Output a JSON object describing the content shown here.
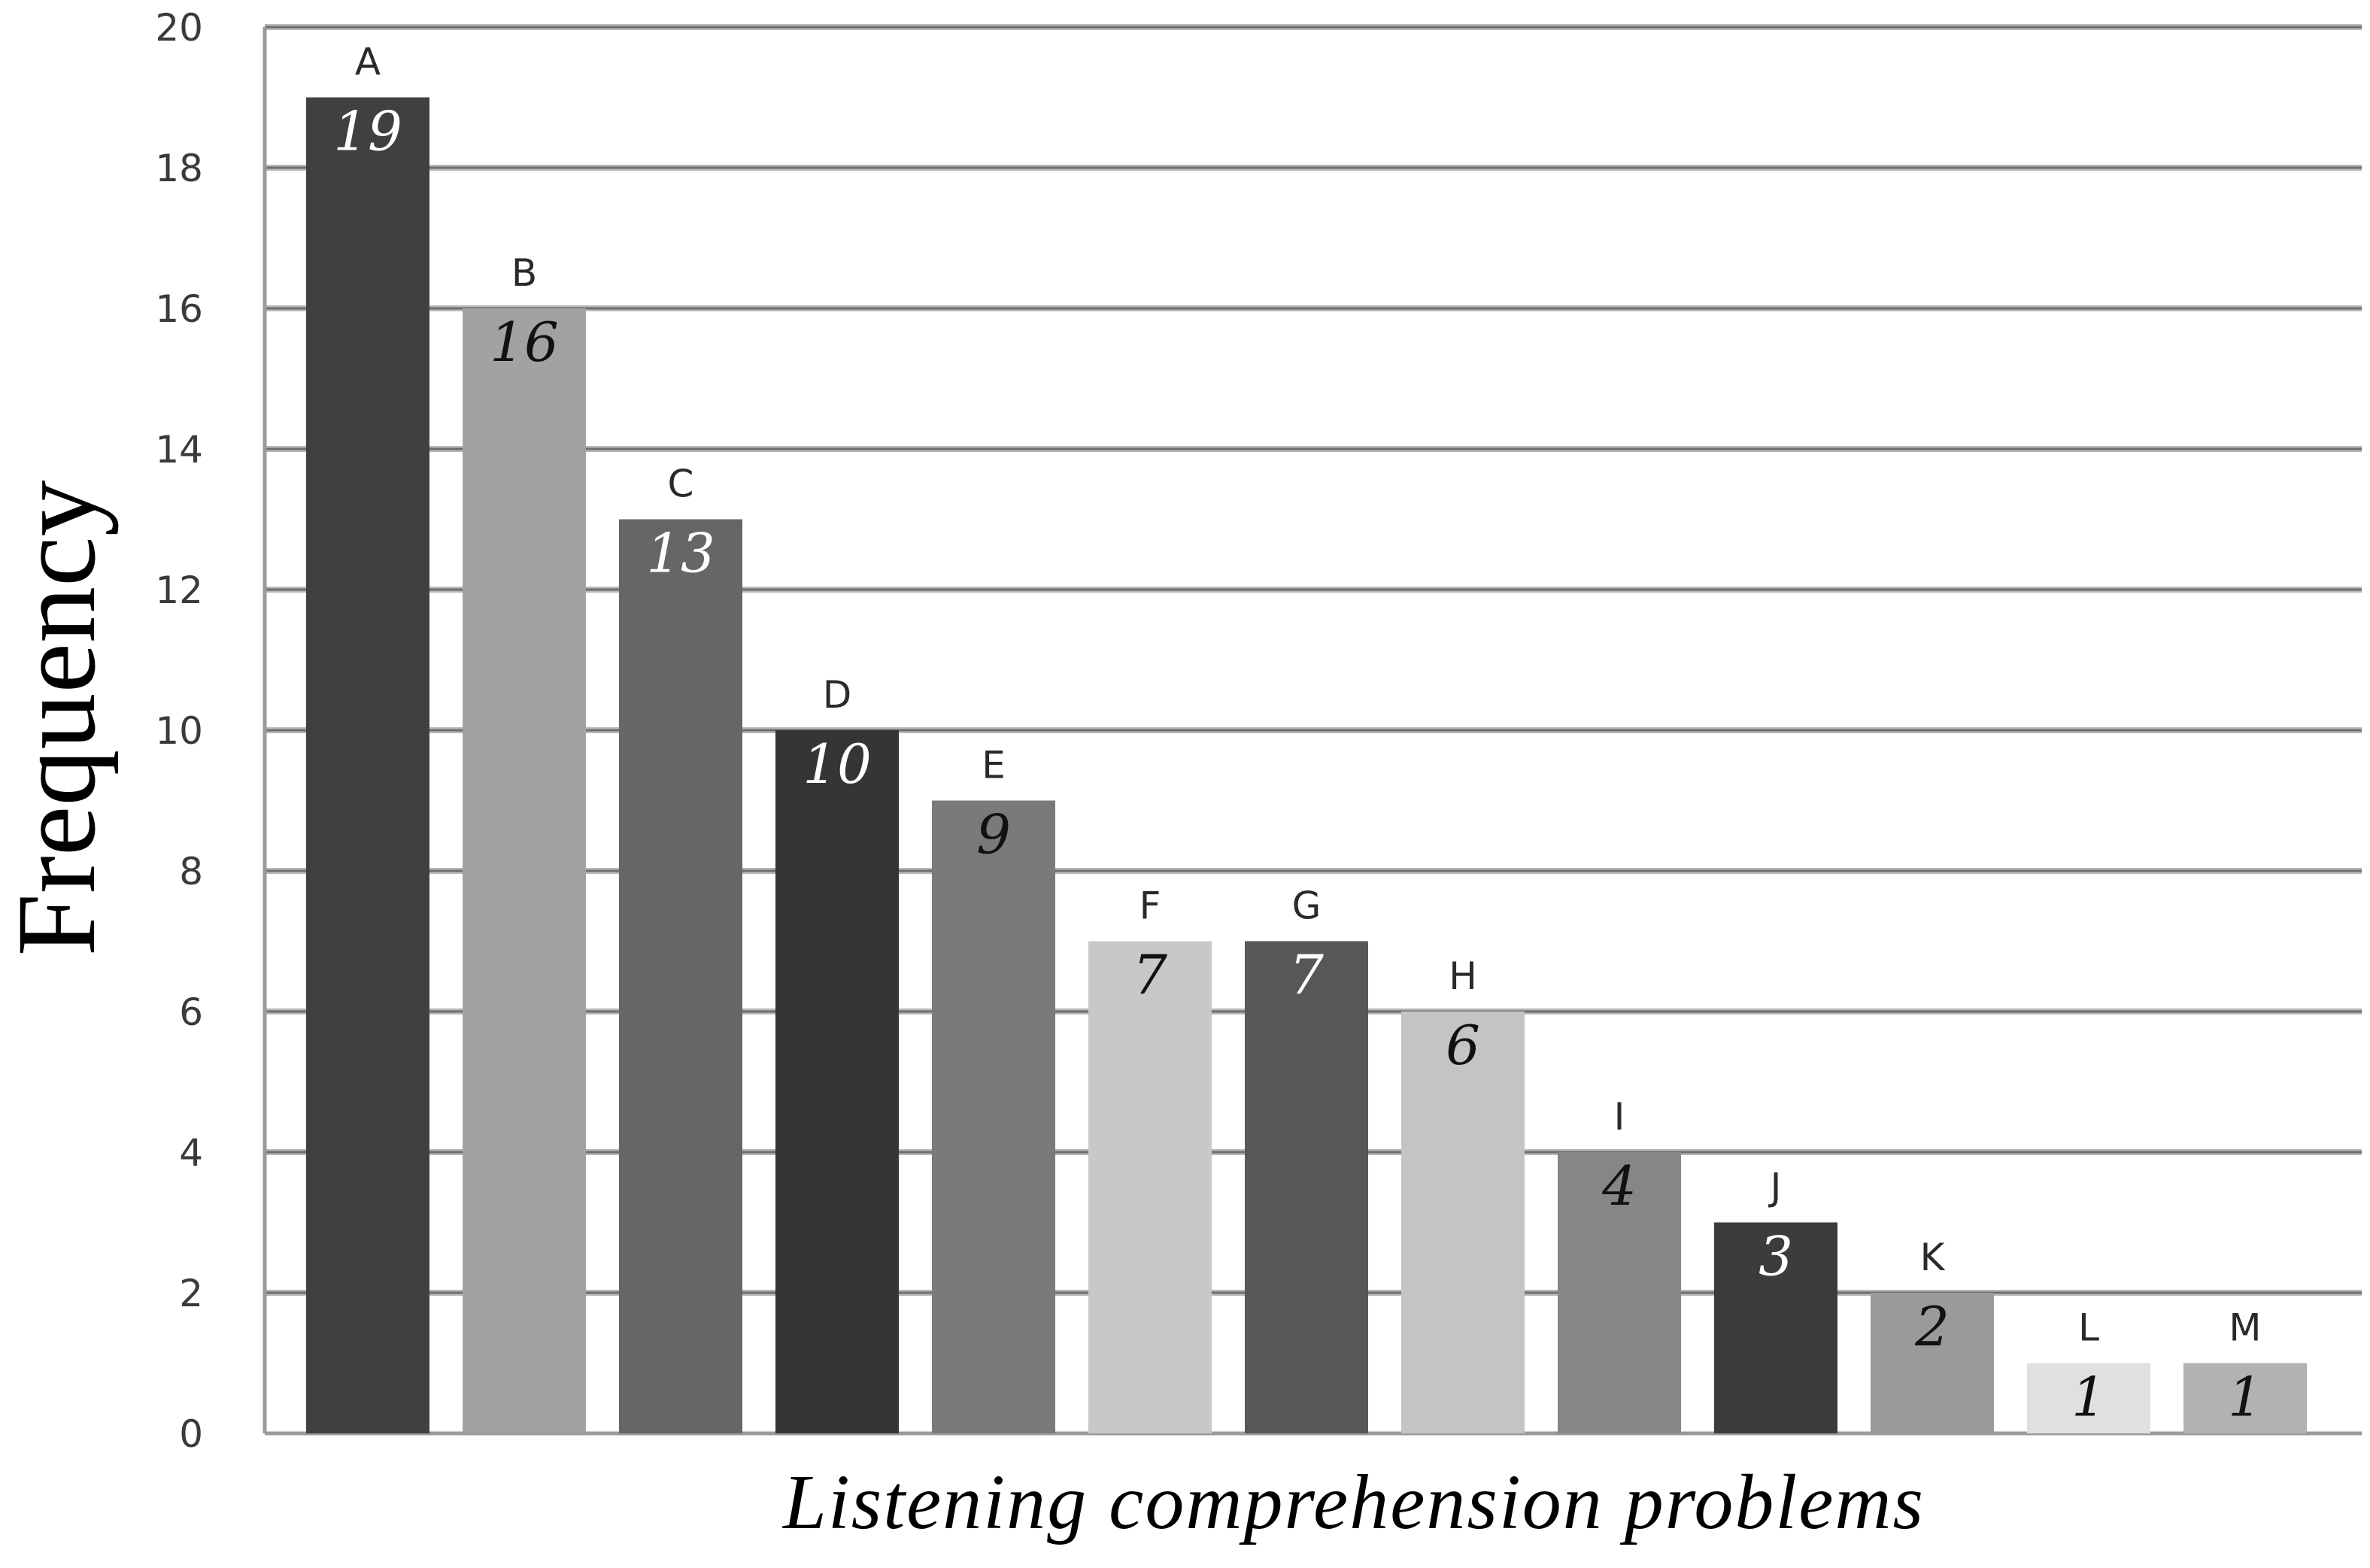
{
  "chart_data": {
    "type": "bar",
    "categories": [
      "A",
      "B",
      "C",
      "D",
      "E",
      "F",
      "G",
      "H",
      "I",
      "J",
      "K",
      "L",
      "M"
    ],
    "values": [
      19,
      16,
      13,
      10,
      9,
      7,
      7,
      6,
      4,
      3,
      2,
      1,
      1
    ],
    "bar_colors": [
      "#404040",
      "#a2a2a2",
      "#666666",
      "#353535",
      "#7a7a7a",
      "#c8c8c8",
      "#575757",
      "#c4c4c4",
      "#868686",
      "#3c3c3c",
      "#9a9a9a",
      "#e0e0e0",
      "#b2b2b2"
    ],
    "label_colors": [
      "#ffffff",
      "#111111",
      "#ffffff",
      "#ffffff",
      "#111111",
      "#111111",
      "#ffffff",
      "#111111",
      "#111111",
      "#ffffff",
      "#111111",
      "#111111",
      "#111111"
    ],
    "title": "",
    "xlabel": "Listening comprehension problems",
    "ylabel": "Frequency",
    "ylim": [
      0,
      20
    ],
    "yticks": [
      "0",
      "2",
      "4",
      "6",
      "8",
      "10",
      "12",
      "14",
      "16",
      "18",
      "20"
    ],
    "grid": true,
    "grid_colors": [
      "#b8b8b8",
      "#6e6e6e"
    ],
    "legend": "none"
  }
}
